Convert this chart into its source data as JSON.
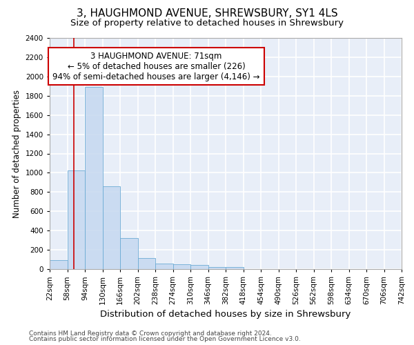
{
  "title": "3, HAUGHMOND AVENUE, SHREWSBURY, SY1 4LS",
  "subtitle": "Size of property relative to detached houses in Shrewsbury",
  "xlabel": "Distribution of detached houses by size in Shrewsbury",
  "ylabel": "Number of detached properties",
  "bar_edges": [
    22,
    58,
    94,
    130,
    166,
    202,
    238,
    274,
    310,
    346,
    382,
    418,
    454,
    490,
    526,
    562,
    598,
    634,
    670,
    706,
    742
  ],
  "bar_heights": [
    90,
    1025,
    1890,
    860,
    320,
    115,
    60,
    50,
    40,
    25,
    20,
    0,
    0,
    0,
    0,
    0,
    0,
    0,
    0,
    0
  ],
  "bar_color": "#c5d8f0",
  "bar_edge_color": "#6aaad4",
  "bar_alpha": 0.85,
  "vline_x": 71,
  "vline_color": "#cc0000",
  "annotation_text": "3 HAUGHMOND AVENUE: 71sqm\n← 5% of detached houses are smaller (226)\n94% of semi-detached houses are larger (4,146) →",
  "annotation_box_color": "#cc0000",
  "annotation_fontsize": 8.5,
  "ylim": [
    0,
    2400
  ],
  "yticks": [
    0,
    200,
    400,
    600,
    800,
    1000,
    1200,
    1400,
    1600,
    1800,
    2000,
    2200,
    2400
  ],
  "bg_color": "#e8eef8",
  "grid_color": "#ffffff",
  "footer1": "Contains HM Land Registry data © Crown copyright and database right 2024.",
  "footer2": "Contains public sector information licensed under the Open Government Licence v3.0.",
  "title_fontsize": 11,
  "subtitle_fontsize": 9.5,
  "xlabel_fontsize": 9.5,
  "ylabel_fontsize": 8.5,
  "tick_fontsize": 7.5,
  "footer_fontsize": 6.5
}
